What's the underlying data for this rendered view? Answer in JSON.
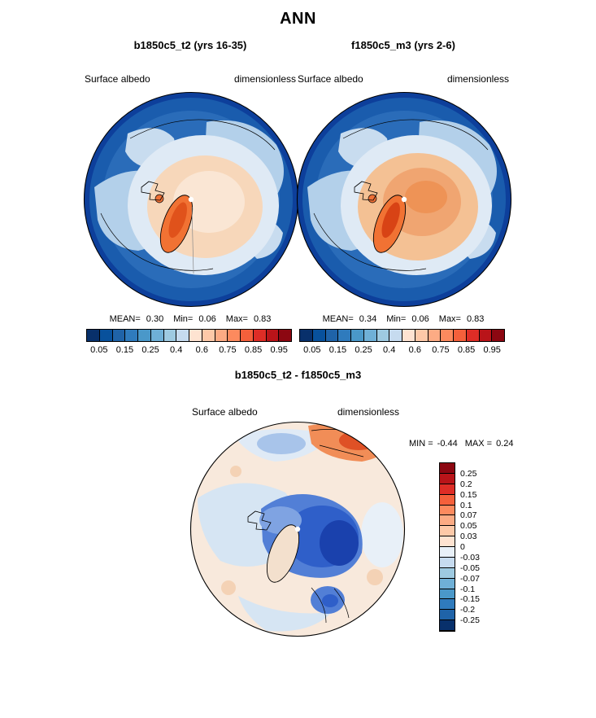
{
  "page_title": "ANN",
  "panels": {
    "case1": {
      "title": "b1850c5_t2 (yrs 16-35)",
      "variable": "Surface albedo",
      "units": "dimensionless",
      "stats": {
        "mean_label": "MEAN=",
        "mean": "0.30",
        "min_label": "Min=",
        "min": "0.06",
        "max_label": "Max=",
        "max": "0.83"
      }
    },
    "case2": {
      "title": "f1850c5_m3 (yrs 2-6)",
      "variable": "Surface albedo",
      "units": "dimensionless",
      "stats": {
        "mean_label": "MEAN=",
        "mean": "0.34",
        "min_label": "Min=",
        "min": "0.06",
        "max_label": "Max=",
        "max": "0.83"
      }
    },
    "diff": {
      "title": "b1850c5_t2 - f1850c5_m3",
      "variable": "Surface albedo",
      "units": "dimensionless",
      "stats": {
        "min_label": "MIN =",
        "min": "-0.44",
        "max_label": "MAX =",
        "max": "0.24"
      }
    }
  },
  "colorbars": {
    "albedo": {
      "orientation": "horizontal",
      "colors": [
        "#08306b",
        "#08519c",
        "#1f63a8",
        "#2f7bbd",
        "#4a98c9",
        "#6fb0d7",
        "#9ecae1",
        "#c6dbef",
        "#fee3d1",
        "#fdc9a8",
        "#fcab84",
        "#fc8a5e",
        "#f4603b",
        "#de2d26",
        "#b91419",
        "#8c0711"
      ],
      "tick_labels": [
        "0.05",
        "0.15",
        "0.25",
        "0.4",
        "0.6",
        "0.75",
        "0.85",
        "0.95"
      ],
      "tick_positions": [
        0.0625,
        0.1875,
        0.3125,
        0.4375,
        0.5625,
        0.6875,
        0.8125,
        0.9375
      ]
    },
    "diff": {
      "orientation": "vertical",
      "colors": [
        "#8c0711",
        "#b91419",
        "#de2d26",
        "#f4603b",
        "#fc8a5e",
        "#fcab84",
        "#fdc9a8",
        "#fee3d1",
        "#e8f0f8",
        "#c6dbef",
        "#9ecae1",
        "#6fb0d7",
        "#4a98c9",
        "#2f7bbd",
        "#1f63a8",
        "#08306b"
      ],
      "tick_labels": [
        "0.25",
        "0.2",
        "0.15",
        "0.1",
        "0.07",
        "0.05",
        "0.03",
        "0",
        "-0.03",
        "-0.05",
        "-0.07",
        "-0.1",
        "-0.15",
        "-0.2",
        "-0.25"
      ]
    }
  },
  "chart_data": [
    {
      "type": "heatmap",
      "panel": "top-left",
      "projection": "north-polar-stereographic",
      "title": "b1850c5_t2 (yrs 16-35)",
      "variable": "Surface albedo",
      "units": "dimensionless",
      "stats": {
        "mean": 0.3,
        "min": 0.06,
        "max": 0.83
      },
      "colorbar_ticks": [
        0.05,
        0.15,
        0.25,
        0.4,
        0.6,
        0.75,
        0.85,
        0.95
      ],
      "legend_position": "below"
    },
    {
      "type": "heatmap",
      "panel": "top-right",
      "projection": "north-polar-stereographic",
      "title": "f1850c5_m3 (yrs 2-6)",
      "variable": "Surface albedo",
      "units": "dimensionless",
      "stats": {
        "mean": 0.34,
        "min": 0.06,
        "max": 0.83
      },
      "colorbar_ticks": [
        0.05,
        0.15,
        0.25,
        0.4,
        0.6,
        0.75,
        0.85,
        0.95
      ],
      "legend_position": "below"
    },
    {
      "type": "heatmap",
      "panel": "bottom",
      "projection": "north-polar-stereographic",
      "title": "b1850c5_t2 - f1850c5_m3",
      "variable": "Surface albedo",
      "units": "dimensionless",
      "stats": {
        "min": -0.44,
        "max": 0.24
      },
      "colorbar_ticks": [
        0.25,
        0.2,
        0.15,
        0.1,
        0.07,
        0.05,
        0.03,
        0,
        -0.03,
        -0.05,
        -0.07,
        -0.1,
        -0.15,
        -0.2,
        -0.25
      ],
      "legend_position": "right"
    }
  ]
}
